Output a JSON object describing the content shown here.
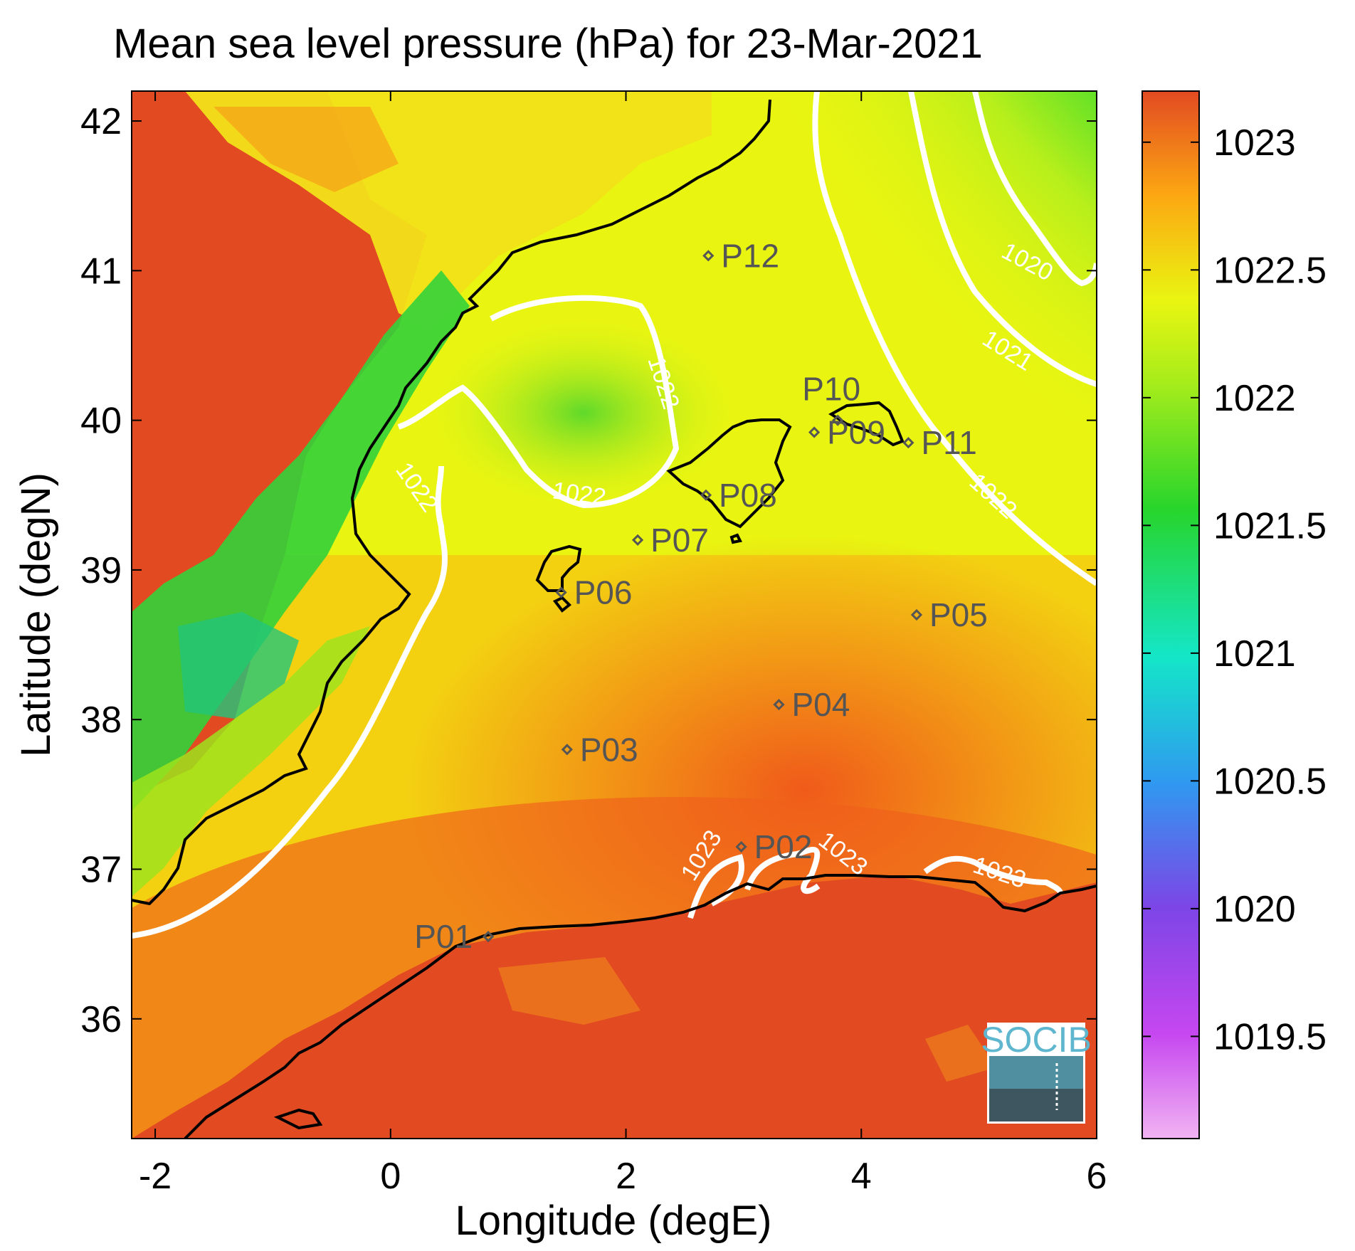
{
  "title": "Mean sea level pressure (hPa) for 23-Mar-2021",
  "xlabel": "Longitude (degE)",
  "ylabel": "Latitude (degN)",
  "x_ticks": [
    "-2",
    "0",
    "2",
    "4",
    "6"
  ],
  "y_ticks": [
    "36",
    "37",
    "38",
    "39",
    "40",
    "41",
    "42"
  ],
  "colorbar_ticks": [
    "1019.5",
    "1020",
    "1020.5",
    "1021",
    "1021.5",
    "1022",
    "1022.5",
    "1023"
  ],
  "contours": [
    {
      "label": "1020"
    },
    {
      "label": "1021"
    },
    {
      "label": "1022"
    },
    {
      "label": "1023"
    }
  ],
  "stations": [
    {
      "id": "P01",
      "lon": 0.83,
      "lat": 36.55
    },
    {
      "id": "P02",
      "lon": 2.98,
      "lat": 37.15
    },
    {
      "id": "P03",
      "lon": 1.5,
      "lat": 37.8
    },
    {
      "id": "P04",
      "lon": 3.3,
      "lat": 38.1
    },
    {
      "id": "P05",
      "lon": 4.47,
      "lat": 38.7
    },
    {
      "id": "P06",
      "lon": 1.45,
      "lat": 38.85
    },
    {
      "id": "P07",
      "lon": 2.1,
      "lat": 39.2
    },
    {
      "id": "P08",
      "lon": 2.68,
      "lat": 39.5
    },
    {
      "id": "P09",
      "lon": 3.6,
      "lat": 39.92
    },
    {
      "id": "P10",
      "lon": 3.8,
      "lat": 40.0
    },
    {
      "id": "P11",
      "lon": 4.4,
      "lat": 39.85
    },
    {
      "id": "P12",
      "lon": 2.7,
      "lat": 41.1
    }
  ],
  "colors": {
    "high": "#e24a22",
    "mid_high": "#fca812",
    "mid": "#e9f511",
    "mid_low": "#2ad530",
    "low": "#17e8c8",
    "lower": "#2bb8ee",
    "lowest": "#8b45e6",
    "min": "#f1b4f2",
    "contour": "#ffffff",
    "coast": "#000000"
  },
  "logo": {
    "text": "SOCIB"
  },
  "chart_data": {
    "type": "heatmap",
    "title": "Mean sea level pressure (hPa) for 23-Mar-2021",
    "xlabel": "Longitude (degE)",
    "ylabel": "Latitude (degN)",
    "xlim": [
      -2.2,
      6
    ],
    "ylim": [
      35.2,
      42.2
    ],
    "colorbar_range": [
      1019.1,
      1023.2
    ],
    "contour_levels": [
      1020,
      1021,
      1022,
      1023
    ],
    "markers": [
      {
        "name": "P01",
        "x": 0.83,
        "y": 36.55
      },
      {
        "name": "P02",
        "x": 2.98,
        "y": 37.15
      },
      {
        "name": "P03",
        "x": 1.5,
        "y": 37.8
      },
      {
        "name": "P04",
        "x": 3.3,
        "y": 38.1
      },
      {
        "name": "P05",
        "x": 4.47,
        "y": 38.7
      },
      {
        "name": "P06",
        "x": 1.45,
        "y": 38.85
      },
      {
        "name": "P07",
        "x": 2.1,
        "y": 39.2
      },
      {
        "name": "P08",
        "x": 2.68,
        "y": 39.5
      },
      {
        "name": "P09",
        "x": 3.6,
        "y": 39.92
      },
      {
        "name": "P10",
        "x": 3.8,
        "y": 40.0
      },
      {
        "name": "P11",
        "x": 4.4,
        "y": 39.85
      },
      {
        "name": "P12",
        "x": 2.7,
        "y": 41.1
      }
    ]
  }
}
